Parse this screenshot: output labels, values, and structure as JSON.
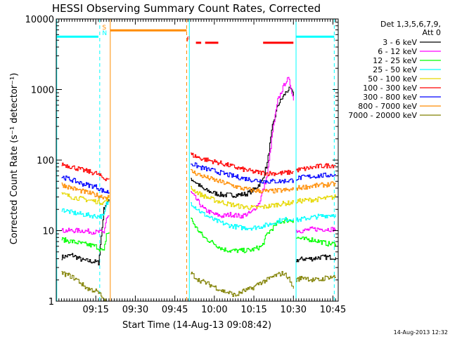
{
  "chart_data": {
    "type": "line",
    "title": "HESSI Observing Summary Count Rates, Corrected",
    "xlabel": "Start Time (14-Aug-13 09:08:42)",
    "ylabel": "Corrected Count Rate (s⁻¹ detector⁻¹)",
    "yscale": "log",
    "ylim": [
      1,
      10000
    ],
    "xlim_minutes": [
      540,
      647
    ],
    "yticks": [
      "1",
      "10",
      "100",
      "1000",
      "10000"
    ],
    "xticks": [
      "09:15",
      "09:30",
      "09:45",
      "10:00",
      "10:15",
      "10:30",
      "10:45"
    ],
    "legend": {
      "header": [
        "Det 1,3,5,6,7,9,",
        "Att 0"
      ],
      "placement": "top-right outside"
    },
    "series": [
      {
        "name": "3 - 6 keV",
        "color": "#000000",
        "segments": [
          {
            "x": [
              542,
              546,
              550,
              555,
              556,
              558,
              559,
              560
            ],
            "y": [
              4.2,
              4.5,
              3.8,
              3.6,
              3.5,
              20,
              25,
              26
            ]
          },
          {
            "x": [
              591,
              593,
              596,
              600,
              603,
              608,
              612,
              615,
              618,
              620,
              622,
              624,
              627,
              628,
              629,
              630
            ],
            "y": [
              55,
              48,
              38,
              34,
              32,
              32,
              33,
              38,
              50,
              90,
              300,
              600,
              900,
              1000,
              1000,
              800
            ]
          },
          {
            "x": [
              631,
              634,
              637,
              640,
              643,
              646
            ],
            "y": [
              3.8,
              4,
              4,
              4.2,
              4.2,
              4.2
            ]
          }
        ]
      },
      {
        "name": "6 - 12 keV",
        "color": "#ff00ff",
        "segments": [
          {
            "x": [
              542,
              546,
              550,
              555,
              558,
              559,
              560
            ],
            "y": [
              10,
              10,
              10,
              9.5,
              9.5,
              15,
              16
            ]
          },
          {
            "x": [
              591,
              593,
              596,
              600,
              603,
              606,
              610,
              614,
              617,
              620,
              622,
              624,
              627,
              628,
              629,
              630
            ],
            "y": [
              35,
              28,
              20,
              17,
              16,
              17,
              16,
              18,
              25,
              60,
              250,
              700,
              1300,
              1400,
              1100,
              700
            ]
          },
          {
            "x": [
              631,
              634,
              637,
              640,
              643,
              646
            ],
            "y": [
              10,
              10,
              10.5,
              10.5,
              10.5,
              10.5
            ]
          }
        ]
      },
      {
        "name": "12 - 25 keV",
        "color": "#00ff00",
        "segments": [
          {
            "x": [
              542,
              546,
              550,
              555,
              558,
              559,
              560
            ],
            "y": [
              7.5,
              7,
              6.5,
              6,
              5,
              9,
              9.5
            ]
          },
          {
            "x": [
              591,
              593,
              596,
              600,
              603,
              606,
              610,
              614,
              618,
              620,
              624,
              627,
              630
            ],
            "y": [
              15,
              11,
              8,
              6.5,
              5.5,
              5.2,
              5.2,
              5.3,
              6,
              9,
              13,
              14,
              14
            ]
          },
          {
            "x": [
              631,
              634,
              637,
              640,
              643,
              646
            ],
            "y": [
              8,
              7.5,
              7.5,
              7,
              6.5,
              6.5
            ]
          }
        ]
      },
      {
        "name": "25 - 50 keV",
        "color": "#00ffff",
        "segments": [
          {
            "x": [
              542,
              546,
              550,
              555,
              558,
              559,
              560
            ],
            "y": [
              20,
              18,
              17,
              16,
              16,
              24,
              25
            ]
          },
          {
            "x": [
              591,
              595,
              600,
              605,
              610,
              615,
              620,
              625,
              630
            ],
            "y": [
              25,
              18,
              14,
              12,
              11,
              11,
              12,
              14,
              15
            ]
          },
          {
            "x": [
              631,
              635,
              640,
              646
            ],
            "y": [
              14,
              15,
              16,
              17
            ]
          }
        ]
      },
      {
        "name": "50 - 100 keV",
        "color": "#e6d800",
        "segments": [
          {
            "x": [
              542,
              546,
              550,
              555,
              558,
              559,
              560
            ],
            "y": [
              33,
              30,
              28,
              26,
              25,
              28,
              29
            ]
          },
          {
            "x": [
              591,
              595,
              600,
              605,
              610,
              615,
              620,
              625,
              630
            ],
            "y": [
              40,
              32,
              27,
              24,
              22,
              21,
              22,
              24,
              25
            ]
          },
          {
            "x": [
              631,
              635,
              640,
              646
            ],
            "y": [
              26,
              27,
              28,
              30
            ]
          }
        ]
      },
      {
        "name": "100 - 300 keV",
        "color": "#ff0000",
        "segments": [
          {
            "x": [
              542,
              546,
              550,
              555,
              558,
              560
            ],
            "y": [
              88,
              80,
              72,
              65,
              55,
              55
            ]
          },
          {
            "x": [
              591,
              595,
              600,
              605,
              610,
              615,
              620,
              625,
              630
            ],
            "y": [
              120,
              105,
              95,
              85,
              75,
              68,
              65,
              65,
              68
            ]
          },
          {
            "x": [
              631,
              635,
              640,
              646
            ],
            "y": [
              72,
              76,
              82,
              85
            ]
          }
        ]
      },
      {
        "name": "300 - 800 keV",
        "color": "#0000ff",
        "segments": [
          {
            "x": [
              542,
              546,
              550,
              555,
              558,
              560
            ],
            "y": [
              58,
              52,
              46,
              42,
              36,
              35
            ]
          },
          {
            "x": [
              591,
              595,
              600,
              605,
              610,
              615,
              620,
              625,
              630
            ],
            "y": [
              90,
              78,
              70,
              62,
              56,
              52,
              50,
              50,
              52
            ]
          },
          {
            "x": [
              631,
              635,
              640,
              646
            ],
            "y": [
              55,
              58,
              60,
              62
            ]
          }
        ]
      },
      {
        "name": "800 - 7000 keV",
        "color": "#ff8c00",
        "segments": [
          {
            "x": [
              542,
              546,
              550,
              555,
              558,
              560
            ],
            "y": [
              45,
              40,
              36,
              32,
              30,
              30
            ]
          },
          {
            "x": [
              591,
              595,
              600,
              605,
              610,
              615,
              620,
              625,
              630
            ],
            "y": [
              70,
              60,
              52,
              46,
              40,
              37,
              36,
              37,
              38
            ]
          },
          {
            "x": [
              631,
              635,
              640,
              646
            ],
            "y": [
              40,
              42,
              44,
              46
            ]
          }
        ]
      },
      {
        "name": "7000 - 20000 keV",
        "color": "#808000",
        "segments": [
          {
            "x": [
              542,
              545,
              548,
              550,
              552,
              555,
              557,
              558,
              559
            ],
            "y": [
              2.5,
              2.3,
              2.0,
              1.7,
              1.5,
              1.4,
              1.2,
              1.0,
              1.0
            ]
          },
          {
            "x": [
              591,
              594,
              597,
              600,
              603,
              606,
              608,
              611,
              614,
              617,
              620,
              623,
              626,
              628,
              629,
              630
            ],
            "y": [
              2.5,
              2.0,
              1.8,
              1.6,
              1.4,
              1.3,
              1.2,
              1.4,
              1.5,
              1.8,
              2.0,
              2.3,
              2.5,
              2.2,
              1.8,
              1.5
            ]
          },
          {
            "x": [
              631,
              634,
              637,
              640,
              643,
              646
            ],
            "y": [
              2.0,
              2.2,
              2.0,
              2.0,
              2.2,
              2.2
            ]
          }
        ]
      }
    ],
    "annotations": [
      {
        "label": "S",
        "x": 558.5,
        "color": "#ff8c00"
      },
      {
        "label": "N",
        "x": 558.5,
        "color": "#00ffff"
      },
      {
        "label": "F",
        "x": 590.5,
        "color": "#ff0000"
      }
    ],
    "markers": {
      "night_bars": [
        {
          "x": [
            540,
            556
          ],
          "y": 5600,
          "color": "#00ffff"
        },
        {
          "x": [
            631,
            645.5
          ],
          "y": 5600,
          "color": "#00ffff"
        }
      ],
      "saa_bar": {
        "x": [
          560.5,
          589.5
        ],
        "y": 6900,
        "color": "#ff8c00"
      },
      "flare_bars": [
        {
          "x": [
            593,
            595
          ],
          "y": 4600,
          "color": "#ff0000"
        },
        {
          "x": [
            596.5,
            601.5
          ],
          "y": 4600,
          "color": "#ff0000"
        },
        {
          "x": [
            618.5,
            630
          ],
          "y": 4600,
          "color": "#ff0000"
        }
      ],
      "vlines": [
        {
          "x": 556.5,
          "color": "#00ffff",
          "style": "dashed"
        },
        {
          "x": 560.5,
          "color": "#ff8c00",
          "style": "solid"
        },
        {
          "x": 589.5,
          "color": "#ff8c00",
          "style": "dashed"
        },
        {
          "x": 590.5,
          "color": "#00ffff",
          "style": "solid"
        },
        {
          "x": 631,
          "color": "#00ffff",
          "style": "solid"
        },
        {
          "x": 645.5,
          "color": "#00ffff",
          "style": "dashed"
        },
        {
          "x": 540.2,
          "color": "#00ffff",
          "style": "solid"
        }
      ]
    }
  },
  "footer": {
    "timestamp": "14-Aug-2013 12:32"
  }
}
